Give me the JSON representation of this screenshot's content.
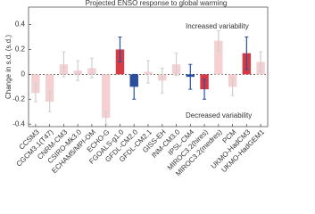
{
  "chart_data": {
    "type": "bar",
    "title": "Projected ENSO response to global warming",
    "y_label": "Change in s.d. (s.d.)",
    "annotations": [
      "Increased variability",
      "Decreased variability"
    ],
    "categories": [
      "CCSM3",
      "CGCM3.1(T47)",
      "CNRM-CM3",
      "CSIRO-Mk3.0",
      "ECHAM5/MPI-OM",
      "ECHO-G",
      "FGOALS-g1.0",
      "GFDL-CM2.0",
      "GFDL-CM2.1",
      "GISS-EH",
      "INM-CM3.0",
      "IPSL-CM4",
      "MIROC3.2(hires)",
      "MIROC3.2(medres)",
      "PCM",
      "UKMO-HadCM3",
      "UKMO-HadGEM1"
    ],
    "values": [
      -0.15,
      -0.22,
      0.08,
      0.03,
      0.05,
      -0.35,
      0.2,
      -0.1,
      0.02,
      -0.05,
      0.08,
      -0.02,
      -0.12,
      0.27,
      -0.1,
      0.17,
      0.1
    ],
    "errors": [
      0.07,
      0.08,
      0.1,
      0.08,
      0.08,
      0.05,
      0.1,
      0.1,
      0.09,
      0.1,
      0.09,
      0.1,
      0.08,
      0.08,
      0.07,
      0.13,
      0.08
    ],
    "colors": [
      "#f5d0d3",
      "#f5d0d3",
      "#f5d0d3",
      "#f5d0d3",
      "#f5d0d3",
      "#f5d0d3",
      "#d63a45",
      "#2b4f9e",
      "#f5d0d3",
      "#f5d0d3",
      "#f5d0d3",
      "#2b4f9e",
      "#d63a45",
      "#f5d0d3",
      "#f5d0d3",
      "#d63a45",
      "#f5d0d3"
    ],
    "error_colors": [
      "#cfcfcf",
      "#cfcfcf",
      "#cfcfcf",
      "#cfcfcf",
      "#cfcfcf",
      "#cfcfcf",
      "#2b4f9e",
      "#2b4f9e",
      "#cfcfcf",
      "#cfcfcf",
      "#cfcfcf",
      "#2b4f9e",
      "#2b4f9e",
      "#cfcfcf",
      "#cfcfcf",
      "#2b4f9e",
      "#cfcfcf"
    ],
    "ylim": [
      -0.42,
      0.54
    ],
    "yticks": [
      -0.4,
      -0.2,
      0,
      0.2,
      0.4
    ],
    "zero_line": true
  }
}
